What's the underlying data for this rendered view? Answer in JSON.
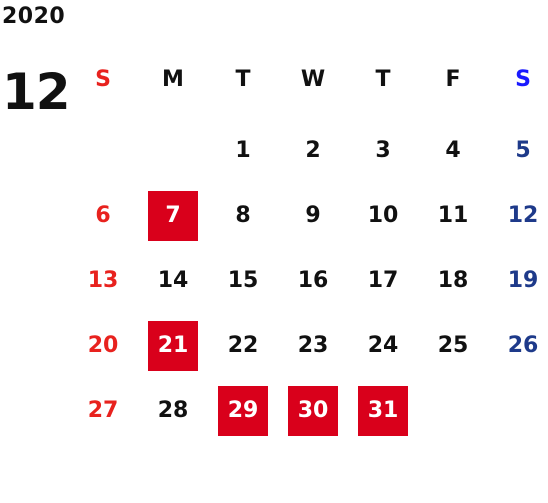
{
  "header": {
    "year": "2020",
    "month": "12"
  },
  "colors": {
    "sunday": "#e8221e",
    "saturday_header": "#1a1aff",
    "saturday_date": "#1e3a8a",
    "weekday": "#111111",
    "holiday_bg": "#d9001b",
    "holiday_text": "#ffffff"
  },
  "weekdays": [
    "S",
    "M",
    "T",
    "W",
    "T",
    "F",
    "S"
  ],
  "weeks": [
    [
      {
        "day": "",
        "highlight": false
      },
      {
        "day": "",
        "highlight": false
      },
      {
        "day": "1",
        "highlight": false
      },
      {
        "day": "2",
        "highlight": false
      },
      {
        "day": "3",
        "highlight": false
      },
      {
        "day": "4",
        "highlight": false
      },
      {
        "day": "5",
        "highlight": false
      }
    ],
    [
      {
        "day": "6",
        "highlight": false
      },
      {
        "day": "7",
        "highlight": true
      },
      {
        "day": "8",
        "highlight": false
      },
      {
        "day": "9",
        "highlight": false
      },
      {
        "day": "10",
        "highlight": false
      },
      {
        "day": "11",
        "highlight": false
      },
      {
        "day": "12",
        "highlight": false
      }
    ],
    [
      {
        "day": "13",
        "highlight": false
      },
      {
        "day": "14",
        "highlight": false
      },
      {
        "day": "15",
        "highlight": false
      },
      {
        "day": "16",
        "highlight": false
      },
      {
        "day": "17",
        "highlight": false
      },
      {
        "day": "18",
        "highlight": false
      },
      {
        "day": "19",
        "highlight": false
      }
    ],
    [
      {
        "day": "20",
        "highlight": false
      },
      {
        "day": "21",
        "highlight": true
      },
      {
        "day": "22",
        "highlight": false
      },
      {
        "day": "23",
        "highlight": false
      },
      {
        "day": "24",
        "highlight": false
      },
      {
        "day": "25",
        "highlight": false
      },
      {
        "day": "26",
        "highlight": false
      }
    ],
    [
      {
        "day": "27",
        "highlight": false
      },
      {
        "day": "28",
        "highlight": false
      },
      {
        "day": "29",
        "highlight": true
      },
      {
        "day": "30",
        "highlight": true
      },
      {
        "day": "31",
        "highlight": true
      },
      {
        "day": "",
        "highlight": false
      },
      {
        "day": "",
        "highlight": false
      }
    ]
  ]
}
